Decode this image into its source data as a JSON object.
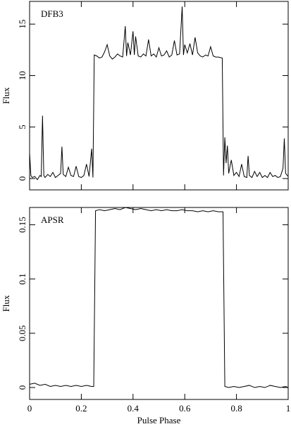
{
  "chart_data": [
    {
      "type": "line",
      "annotation": "DFB3",
      "ylabel": "Flux",
      "color": "#000000",
      "x": [
        0,
        0.005,
        0.01,
        0.02,
        0.03,
        0.04,
        0.045,
        0.05,
        0.055,
        0.06,
        0.07,
        0.08,
        0.09,
        0.1,
        0.11,
        0.12,
        0.125,
        0.13,
        0.14,
        0.15,
        0.16,
        0.17,
        0.18,
        0.19,
        0.2,
        0.21,
        0.22,
        0.23,
        0.24,
        0.245,
        0.25,
        0.26,
        0.27,
        0.28,
        0.29,
        0.3,
        0.31,
        0.32,
        0.33,
        0.34,
        0.35,
        0.36,
        0.37,
        0.375,
        0.38,
        0.39,
        0.4,
        0.405,
        0.41,
        0.42,
        0.43,
        0.44,
        0.45,
        0.46,
        0.47,
        0.48,
        0.49,
        0.5,
        0.51,
        0.52,
        0.53,
        0.54,
        0.55,
        0.56,
        0.57,
        0.58,
        0.59,
        0.595,
        0.6,
        0.61,
        0.62,
        0.63,
        0.64,
        0.65,
        0.66,
        0.67,
        0.68,
        0.69,
        0.7,
        0.71,
        0.72,
        0.73,
        0.745,
        0.75,
        0.755,
        0.76,
        0.765,
        0.77,
        0.78,
        0.79,
        0.8,
        0.81,
        0.82,
        0.83,
        0.84,
        0.845,
        0.85,
        0.86,
        0.87,
        0.88,
        0.89,
        0.9,
        0.91,
        0.92,
        0.93,
        0.94,
        0.95,
        0.96,
        0.97,
        0.98,
        0.985,
        0.99,
        1
      ],
      "values": [
        2.5,
        0.3,
        0.1,
        0.2,
        -0.1,
        0.3,
        0.2,
        6.1,
        0.3,
        0.1,
        0.4,
        0.2,
        0.6,
        0.1,
        0.3,
        0.5,
        3.1,
        0.4,
        0.2,
        1.1,
        0.3,
        0.2,
        1.2,
        0.2,
        0.1,
        0.3,
        1.4,
        0.2,
        2.9,
        0.1,
        12,
        11.9,
        11.7,
        11.8,
        12.3,
        13,
        11.9,
        11.6,
        11.8,
        12.1,
        11.9,
        11.8,
        14.8,
        11.9,
        13.2,
        12,
        14.3,
        12,
        13.8,
        11.9,
        11.8,
        12.1,
        11.9,
        13.5,
        11.9,
        12.1,
        11.8,
        12.7,
        11.9,
        12,
        12.4,
        11.8,
        12,
        13.4,
        12,
        12.1,
        16.7,
        12,
        13,
        12.2,
        13.1,
        12,
        13.7,
        12.2,
        11.9,
        11.8,
        12,
        11.9,
        12.8,
        11.9,
        11.8,
        11.8,
        11.7,
        0.3,
        4,
        1.5,
        3.2,
        0.5,
        1.8,
        0.3,
        0.6,
        0.2,
        1.4,
        0.2,
        0.1,
        2.2,
        0.3,
        0.1,
        0.7,
        0.2,
        0.6,
        0.1,
        0.3,
        0.1,
        0.6,
        0.2,
        0.3,
        0.1,
        0.2,
        1,
        3.9,
        0.5,
        0.2
      ],
      "xlim": [
        0,
        1
      ],
      "xticks": [
        0,
        0.2,
        0.4,
        0.6,
        0.8,
        1
      ],
      "ylim": [
        -1.1,
        17.2
      ],
      "yticks": [
        0,
        5,
        10,
        15
      ]
    },
    {
      "type": "line",
      "annotation": "APSR",
      "ylabel": "Flux",
      "xlabel": "Pulse Phase",
      "color": "#000000",
      "x": [
        0,
        0.02,
        0.04,
        0.06,
        0.08,
        0.1,
        0.12,
        0.14,
        0.16,
        0.18,
        0.2,
        0.22,
        0.24,
        0.248,
        0.255,
        0.27,
        0.29,
        0.31,
        0.33,
        0.35,
        0.37,
        0.39,
        0.41,
        0.43,
        0.45,
        0.47,
        0.49,
        0.51,
        0.53,
        0.55,
        0.57,
        0.59,
        0.61,
        0.63,
        0.65,
        0.67,
        0.69,
        0.71,
        0.73,
        0.748,
        0.755,
        0.77,
        0.79,
        0.81,
        0.83,
        0.85,
        0.87,
        0.89,
        0.91,
        0.93,
        0.95,
        0.97,
        0.99,
        1
      ],
      "values": [
        0.003,
        0.004,
        0.002,
        0.003,
        0.001,
        0.002,
        0.001,
        0.002,
        0.001,
        0.002,
        0.001,
        0.002,
        0.001,
        0.001,
        0.163,
        0.164,
        0.163,
        0.164,
        0.165,
        0.164,
        0.166,
        0.165,
        0.164,
        0.165,
        0.164,
        0.163,
        0.164,
        0.163,
        0.164,
        0.163,
        0.163,
        0.164,
        0.163,
        0.163,
        0.162,
        0.163,
        0.162,
        0.163,
        0.162,
        0.162,
        0.001,
        0,
        0.001,
        0,
        0.001,
        0.002,
        0,
        0.001,
        0,
        0.002,
        0.001,
        0,
        0.001,
        0
      ],
      "xlim": [
        0,
        1
      ],
      "xticks": [
        0,
        0.2,
        0.4,
        0.6,
        0.8,
        1
      ],
      "ylim": [
        -0.011,
        0.166
      ],
      "yticks": [
        0,
        0.05,
        0.1,
        0.15
      ]
    }
  ]
}
